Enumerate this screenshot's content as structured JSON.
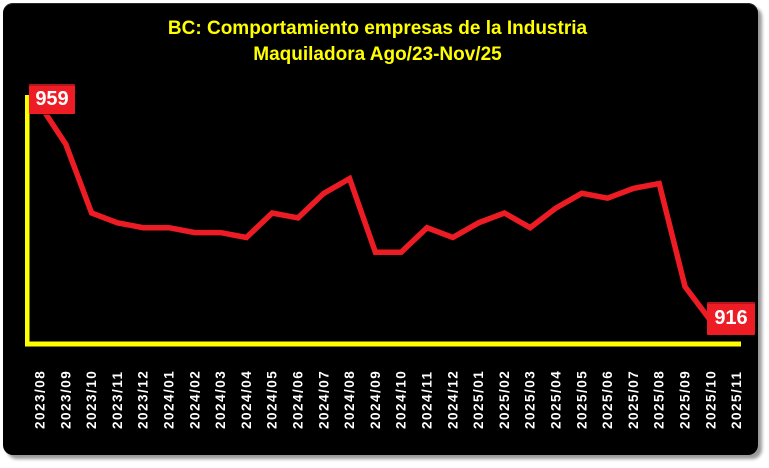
{
  "window": {
    "background": "#ffffff",
    "panel_background": "#000000"
  },
  "colors": {
    "title": "#ffff00",
    "axis": "#ffff00",
    "line": "#ed1c24",
    "tick_text": "#ffffff",
    "value_label_background": "#ee1c25",
    "value_label_text": "#ffffff"
  },
  "chart_data": {
    "type": "line",
    "title": "BC: Comportamiento empresas de la Industria Maquiladora Ago/23-Nov/25",
    "xlabel": "",
    "ylabel": "",
    "legend": false,
    "grid": false,
    "ylim": [
      910,
      965
    ],
    "categories": [
      "2023/08",
      "2023/09",
      "2023/10",
      "2023/11",
      "2023/12",
      "2024/01",
      "2024/02",
      "2024/03",
      "2024/04",
      "2024/05",
      "2024/06",
      "2024/07",
      "2024/08",
      "2024/09",
      "2024/10",
      "2024/11",
      "2024/12",
      "2025/01",
      "2025/02",
      "2025/03",
      "2025/04",
      "2025/05",
      "2025/06",
      "2025/07",
      "2025/08",
      "2025/09",
      "2025/10",
      "2025/11"
    ],
    "values": [
      959,
      951,
      937,
      935,
      934,
      934,
      933,
      933,
      932,
      937,
      936,
      941,
      944,
      929,
      929,
      934,
      932,
      935,
      937,
      934,
      938,
      941,
      940,
      942,
      943,
      922,
      915,
      916
    ],
    "annotations": [
      {
        "category": "2023/08",
        "text": "959"
      },
      {
        "category": "2025/11",
        "text": "916"
      }
    ]
  }
}
